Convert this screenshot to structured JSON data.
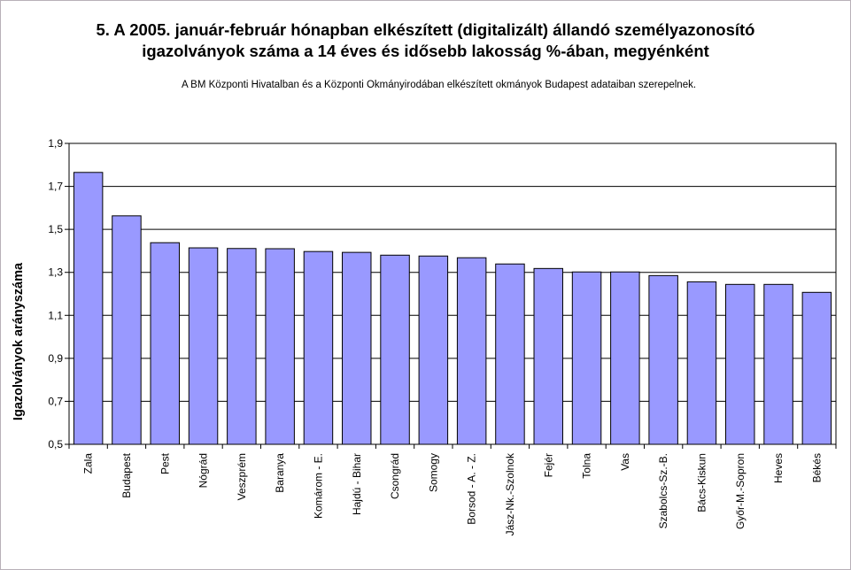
{
  "chart_data": {
    "type": "bar",
    "title": [
      "5. A 2005. január-február hónapban elkészített (digitalizált) állandó személyazonosító",
      "igazolványok száma a 14 éves és idősebb lakosság %-ában,  megyénként"
    ],
    "subtitle": "A BM Központi Hivatalban és a Központi Okmányirodában elkészített  okmányok Budapest adataiban szerepelnek.",
    "xlabel": "",
    "ylabel": "Igazolványok arányszáma",
    "ylim": [
      0.5,
      1.9
    ],
    "yticks": [
      "0,5",
      "0,7",
      "0,9",
      "1,1",
      "1,3",
      "1,5",
      "1,7",
      "1,9"
    ],
    "grid": true,
    "legend": "none",
    "categories": [
      "Zala",
      "Budapest",
      "Pest",
      "Nógrád",
      "Veszprém",
      "Baranya",
      "Komárom - E.",
      "Hajdú - Bihar",
      "Csongrád",
      "Somogy",
      "Borsod - A. - Z.",
      "Jász-Nk.-Szolnok",
      "Fejér",
      "Tolna",
      "Vas",
      "Szabolcs-Sz.-B.",
      "Bács-Kiskun",
      "Győr-M.-Sopron",
      "Heves",
      "Békés"
    ],
    "values": [
      1.765,
      1.563,
      1.438,
      1.414,
      1.411,
      1.41,
      1.397,
      1.393,
      1.38,
      1.376,
      1.368,
      1.339,
      1.318,
      1.302,
      1.302,
      1.285,
      1.256,
      1.244,
      1.244,
      1.207
    ],
    "colors": {
      "bar_fill": "#9999ff",
      "bar_stroke": "#000000",
      "plot_bg": "#ffffff",
      "grid": "#000000"
    }
  }
}
